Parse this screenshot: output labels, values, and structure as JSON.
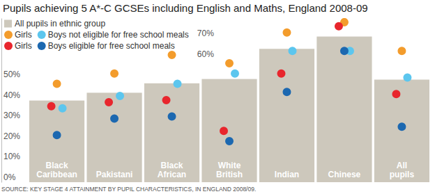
{
  "chart_data": {
    "type": "bar",
    "title": "Pupils achieving 5 A*-C GCSEs including English and Maths, England 2008-09",
    "source": "SOURCE: KEY STAGE 4 ATTAINMENT BY PUPIL CHARACTERISTICS, IN ENGLAND 2008/09.",
    "categories": [
      "Black Caribbean",
      "Pakistani",
      "Black African",
      "White British",
      "Indian",
      "Chinese",
      "All pupils"
    ],
    "series": [
      {
        "name": "All pupils in ethnic group",
        "type": "bar",
        "color": "#cdc8bc",
        "values": [
          39.8,
          43.6,
          48.2,
          50.3,
          65,
          71,
          50
        ]
      },
      {
        "name": "Girls",
        "type": "scatter",
        "marker": "circle",
        "color": "#f39c2c",
        "values": [
          48,
          53,
          62,
          58,
          73,
          78,
          64
        ]
      },
      {
        "name": "Boys not eligible for free school meals",
        "type": "scatter",
        "marker": "circle",
        "color": "#5cc6ee",
        "values": [
          36,
          42,
          48,
          53,
          64,
          64,
          51
        ]
      },
      {
        "name": "Girls",
        "type": "scatter",
        "marker": "circle",
        "color": "#e8262d",
        "values": [
          37,
          39,
          40,
          25,
          53,
          76,
          43
        ]
      },
      {
        "name": "Boys eligible for free school meals",
        "type": "scatter",
        "marker": "circle",
        "color": "#1c68b0",
        "values": [
          23,
          31,
          32,
          20,
          44,
          64,
          27
        ]
      }
    ],
    "ylim": [
      0,
      80
    ],
    "yticks": [
      {
        "value": 0,
        "label": "0%"
      },
      {
        "value": 10,
        "label": "10%"
      },
      {
        "value": 20,
        "label": "20%"
      },
      {
        "value": 30,
        "label": "30%"
      },
      {
        "value": 40,
        "label": "40%"
      },
      {
        "value": 50,
        "label": "50%"
      },
      {
        "value": 60,
        "label": "60%"
      },
      {
        "value": 70,
        "label": "70%"
      }
    ],
    "grid": false,
    "legend": "top-left"
  }
}
